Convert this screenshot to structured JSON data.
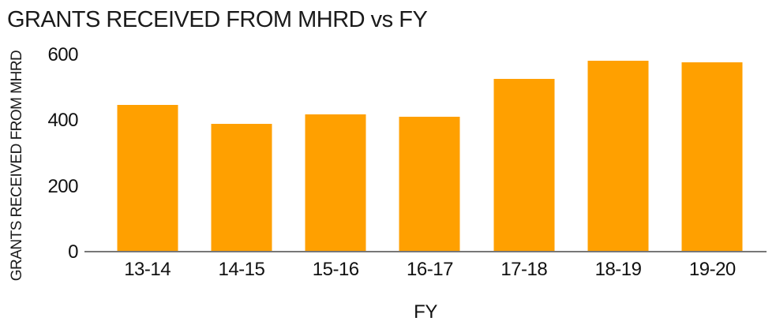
{
  "chart_data": {
    "type": "bar",
    "title": "GRANTS RECEIVED FROM MHRD vs FY",
    "xlabel": "FY",
    "ylabel": "GRANTS RECEIVED FROM MHRD",
    "categories": [
      "13-14",
      "14-15",
      "15-16",
      "16-17",
      "17-18",
      "18-19",
      "19-20"
    ],
    "values": [
      448,
      392,
      421,
      412,
      527,
      583,
      578
    ],
    "ylim": [
      0,
      600
    ],
    "yticks": [
      0,
      200,
      400,
      600
    ],
    "grid": false,
    "legend": false,
    "bar_color": "#FFA000",
    "axis_color": "#777777",
    "text_color": "#1a1a1a",
    "background_color": "#ffffff"
  }
}
